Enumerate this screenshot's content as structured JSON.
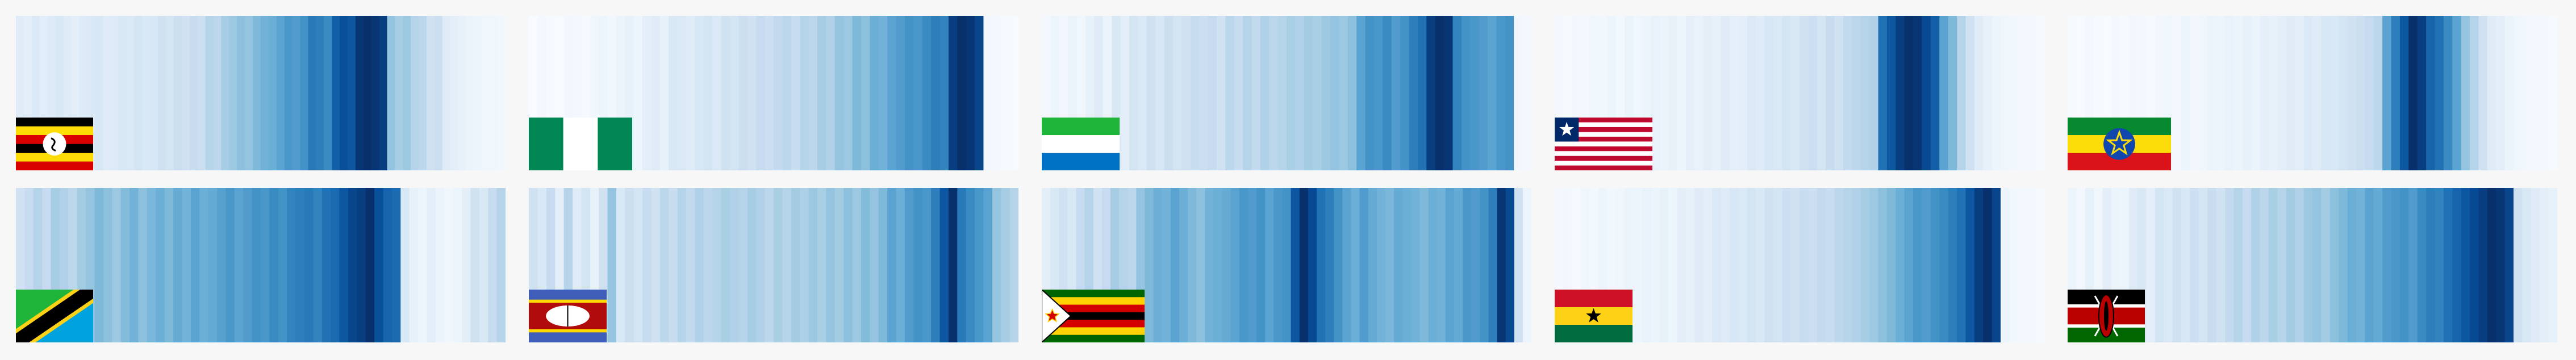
{
  "chart_data": {
    "type": "heatmap",
    "subtype": "warming-stripes",
    "title": "",
    "xlabel": "",
    "ylabel": "",
    "legend": "none",
    "grid": false,
    "colormap": [
      "#f7fbff",
      "#deebf7",
      "#c6dbef",
      "#9ecae1",
      "#6baed6",
      "#4292c6",
      "#2171b5",
      "#08519c",
      "#08306b"
    ],
    "value_range": [
      0,
      1
    ],
    "panels": [
      {
        "flag": "flag-uganda",
        "values": [
          0.12,
          0.1,
          0.14,
          0.11,
          0.13,
          0.15,
          0.12,
          0.1,
          0.13,
          0.14,
          0.16,
          0.12,
          0.13,
          0.15,
          0.14,
          0.18,
          0.15,
          0.16,
          0.2,
          0.18,
          0.22,
          0.2,
          0.24,
          0.22,
          0.3,
          0.28,
          0.35,
          0.38,
          0.42,
          0.4,
          0.45,
          0.48,
          0.5,
          0.55,
          0.6,
          0.58,
          0.62,
          0.72,
          0.7,
          0.65,
          0.82,
          0.88,
          0.85,
          0.98,
          1.0,
          0.98,
          0.95,
          0.4,
          0.35,
          0.38,
          0.3,
          0.28,
          0.2,
          0.22,
          0.12,
          0.1,
          0.08,
          0.06,
          0.05,
          0.04,
          0.04,
          0.03
        ]
      },
      {
        "flag": "flag-nigeria",
        "values": [
          0.0,
          0.02,
          0.01,
          0.0,
          0.03,
          0.02,
          0.01,
          0.04,
          0.05,
          0.03,
          0.06,
          0.08,
          0.05,
          0.1,
          0.12,
          0.08,
          0.15,
          0.14,
          0.12,
          0.16,
          0.18,
          0.14,
          0.2,
          0.18,
          0.22,
          0.2,
          0.25,
          0.22,
          0.26,
          0.28,
          0.24,
          0.3,
          0.28,
          0.35,
          0.32,
          0.4,
          0.38,
          0.45,
          0.42,
          0.5,
          0.48,
          0.55,
          0.58,
          0.62,
          0.6,
          0.65,
          0.7,
          0.68,
          0.95,
          1.0,
          0.98,
          0.92,
          0.03,
          0.02,
          0.01,
          0.0
        ]
      },
      {
        "flag": "flag-sierra-leone",
        "values": [
          0.02,
          0.05,
          0.03,
          0.06,
          0.04,
          0.08,
          0.12,
          0.06,
          0.15,
          0.1,
          0.18,
          0.14,
          0.2,
          0.16,
          0.22,
          0.18,
          0.2,
          0.24,
          0.22,
          0.25,
          0.2,
          0.28,
          0.24,
          0.3,
          0.26,
          0.32,
          0.28,
          0.3,
          0.34,
          0.32,
          0.36,
          0.34,
          0.38,
          0.4,
          0.38,
          0.42,
          0.55,
          0.62,
          0.6,
          0.65,
          0.58,
          0.62,
          0.7,
          0.75,
          0.95,
          1.0,
          0.98,
          0.68,
          0.62,
          0.6,
          0.58,
          0.55,
          0.6,
          0.62,
          0.03,
          0.02
        ]
      },
      {
        "flag": "flag-liberia",
        "values": [
          0.02,
          0.01,
          0.03,
          0.02,
          0.04,
          0.03,
          0.05,
          0.02,
          0.06,
          0.04,
          0.05,
          0.07,
          0.06,
          0.08,
          0.05,
          0.09,
          0.07,
          0.1,
          0.08,
          0.12,
          0.09,
          0.1,
          0.14,
          0.12,
          0.16,
          0.14,
          0.18,
          0.15,
          0.2,
          0.22,
          0.18,
          0.24,
          0.2,
          0.26,
          0.28,
          0.3,
          0.32,
          0.75,
          0.85,
          0.95,
          1.0,
          0.98,
          0.9,
          0.82,
          0.55,
          0.45,
          0.3,
          0.2,
          0.12,
          0.08,
          0.05,
          0.04,
          0.03,
          0.02,
          0.02,
          0.01
        ]
      },
      {
        "flag": "flag-ethiopia",
        "values": [
          0.01,
          0.0,
          0.02,
          0.01,
          0.0,
          0.02,
          0.01,
          0.03,
          0.02,
          0.01,
          0.03,
          0.04,
          0.02,
          0.05,
          0.03,
          0.04,
          0.06,
          0.05,
          0.07,
          0.06,
          0.08,
          0.06,
          0.09,
          0.08,
          0.1,
          0.12,
          0.1,
          0.14,
          0.12,
          0.16,
          0.15,
          0.18,
          0.2,
          0.22,
          0.25,
          0.28,
          0.55,
          0.7,
          0.85,
          1.0,
          0.95,
          0.8,
          0.75,
          0.65,
          0.55,
          0.4,
          0.3,
          0.2,
          0.12,
          0.1,
          0.06,
          0.04,
          0.03,
          0.02,
          0.02,
          0.01
        ]
      },
      {
        "flag": "flag-tanzania",
        "values": [
          0.2,
          0.25,
          0.3,
          0.25,
          0.35,
          0.32,
          0.28,
          0.36,
          0.4,
          0.45,
          0.42,
          0.38,
          0.44,
          0.48,
          0.42,
          0.46,
          0.5,
          0.45,
          0.52,
          0.48,
          0.55,
          0.5,
          0.52,
          0.56,
          0.6,
          0.55,
          0.58,
          0.62,
          0.6,
          0.65,
          0.62,
          0.68,
          0.7,
          0.72,
          0.68,
          0.75,
          0.78,
          0.85,
          0.92,
          0.95,
          1.0,
          0.88,
          0.8,
          0.78,
          0.15,
          0.08,
          0.05,
          0.1,
          0.06,
          0.04,
          0.05,
          0.1,
          0.2,
          0.15,
          0.25,
          0.3
        ]
      },
      {
        "flag": "flag-eswatini",
        "values": [
          0.2,
          0.15,
          0.25,
          0.1,
          0.3,
          0.12,
          0.18,
          0.08,
          0.2,
          0.4,
          0.15,
          0.22,
          0.18,
          0.25,
          0.2,
          0.28,
          0.24,
          0.3,
          0.26,
          0.32,
          0.28,
          0.3,
          0.34,
          0.32,
          0.3,
          0.35,
          0.32,
          0.28,
          0.34,
          0.3,
          0.36,
          0.33,
          0.38,
          0.34,
          0.4,
          0.36,
          0.42,
          0.38,
          0.44,
          0.4,
          0.45,
          0.55,
          0.5,
          0.58,
          0.62,
          0.6,
          0.7,
          0.85,
          1.0,
          0.72,
          0.65,
          0.6,
          0.55,
          0.4,
          0.35,
          0.3
        ]
      },
      {
        "flag": "flag-zimbabwe",
        "values": [
          0.1,
          0.15,
          0.2,
          0.15,
          0.25,
          0.3,
          0.2,
          0.25,
          0.35,
          0.3,
          0.28,
          0.4,
          0.45,
          0.5,
          0.48,
          0.55,
          0.5,
          0.45,
          0.42,
          0.48,
          0.5,
          0.52,
          0.55,
          0.6,
          0.58,
          0.62,
          0.55,
          0.6,
          0.62,
          0.85,
          1.0,
          0.9,
          0.75,
          0.7,
          0.62,
          0.55,
          0.5,
          0.58,
          0.52,
          0.48,
          0.46,
          0.52,
          0.5,
          0.48,
          0.45,
          0.5,
          0.48,
          0.55,
          0.52,
          0.6,
          0.58,
          0.62,
          0.7,
          0.98,
          0.9,
          0.2,
          0.05
        ]
      },
      {
        "flag": "flag-ghana",
        "values": [
          0.02,
          0.03,
          0.01,
          0.04,
          0.02,
          0.05,
          0.03,
          0.04,
          0.06,
          0.05,
          0.07,
          0.06,
          0.08,
          0.05,
          0.1,
          0.08,
          0.12,
          0.1,
          0.14,
          0.12,
          0.16,
          0.14,
          0.18,
          0.15,
          0.2,
          0.18,
          0.22,
          0.2,
          0.24,
          0.22,
          0.26,
          0.24,
          0.28,
          0.3,
          0.32,
          0.35,
          0.38,
          0.42,
          0.45,
          0.5,
          0.55,
          0.6,
          0.58,
          0.62,
          0.65,
          0.7,
          0.75,
          0.85,
          0.95,
          1.0,
          0.92,
          0.05,
          0.03,
          0.02,
          0.02,
          0.01
        ]
      },
      {
        "flag": "flag-kenya",
        "values": [
          0.05,
          0.02,
          0.08,
          0.04,
          0.1,
          0.06,
          0.05,
          0.12,
          0.15,
          0.1,
          0.18,
          0.14,
          0.2,
          0.16,
          0.22,
          0.18,
          0.24,
          0.2,
          0.26,
          0.3,
          0.25,
          0.32,
          0.28,
          0.34,
          0.3,
          0.36,
          0.32,
          0.38,
          0.4,
          0.36,
          0.42,
          0.45,
          0.5,
          0.48,
          0.55,
          0.52,
          0.58,
          0.6,
          0.62,
          0.58,
          0.65,
          0.7,
          0.68,
          0.75,
          0.8,
          0.85,
          0.9,
          0.95,
          1.0,
          0.98,
          0.92,
          0.2,
          0.15,
          0.12,
          0.1,
          0.08
        ]
      }
    ]
  }
}
